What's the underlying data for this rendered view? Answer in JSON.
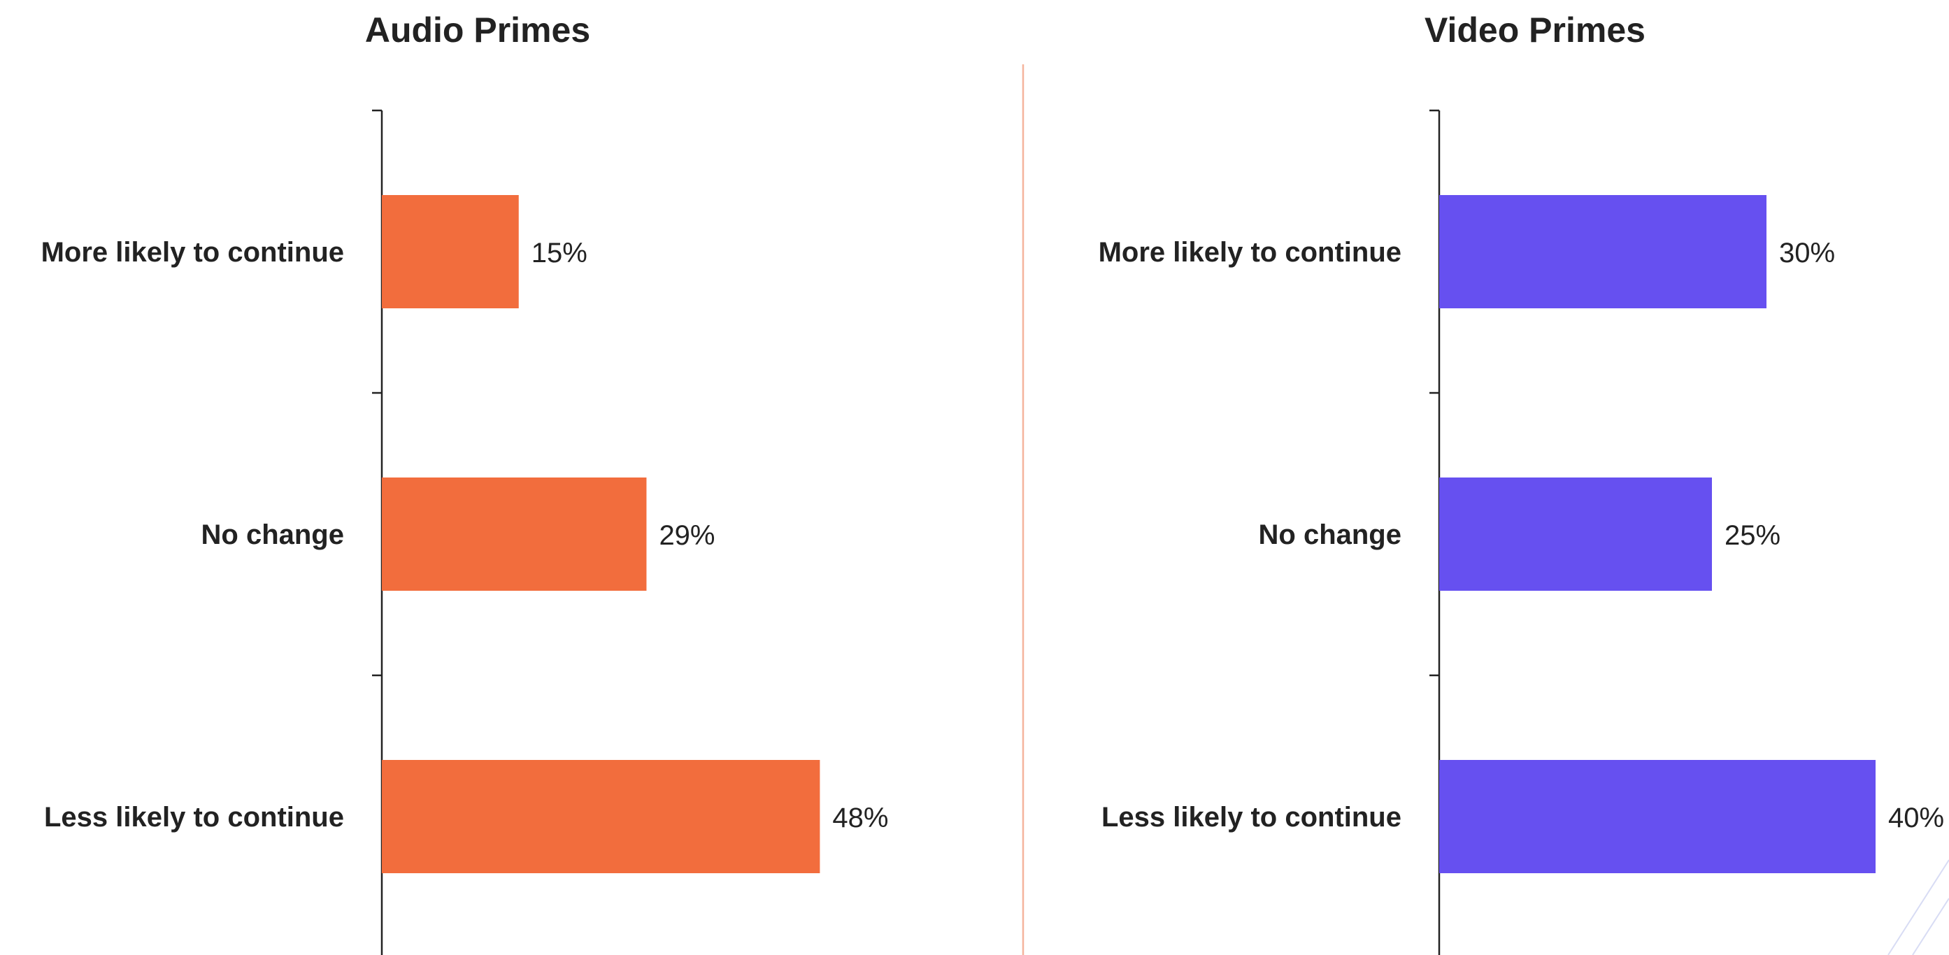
{
  "colors": {
    "audio_bar": "#F26D3D",
    "video_bar": "#6650F0",
    "divider": "#F5B49C"
  },
  "chart_data": [
    {
      "type": "bar",
      "orientation": "horizontal",
      "title": "Audio Primes",
      "categories": [
        "More likely to continue",
        "No change",
        "Less likely to continue"
      ],
      "values": [
        15,
        29,
        48
      ],
      "value_labels": [
        "15%",
        "29%",
        "48%"
      ],
      "xlim": [
        0,
        100
      ],
      "grid": false,
      "color": "#F26D3D"
    },
    {
      "type": "bar",
      "orientation": "horizontal",
      "title": "Video Primes",
      "categories": [
        "More likely to continue",
        "No change",
        "Less likely to continue"
      ],
      "values": [
        30,
        25,
        40
      ],
      "value_labels": [
        "30%",
        "25%",
        "40%"
      ],
      "xlim": [
        0,
        100
      ],
      "grid": false,
      "color": "#6650F0"
    }
  ]
}
